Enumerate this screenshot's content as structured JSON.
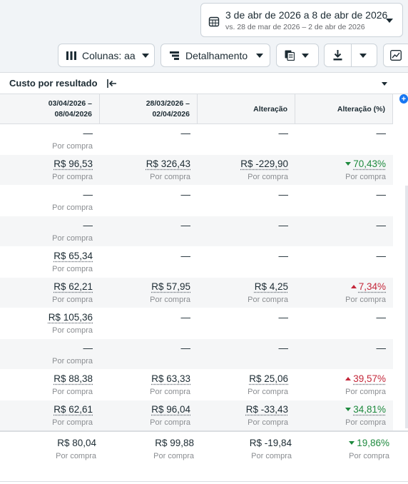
{
  "date_range": {
    "main": "3 de abr de 2026 a 8 de abr de 2026",
    "compare": "vs. 28 de mar de 2026 – 2 de abr de 2026"
  },
  "toolbar": {
    "columns_label": "Colunas: aa",
    "breakdown_label": "Detalhamento"
  },
  "filter": {
    "label": "Custo por resultado"
  },
  "columns": {
    "current_line1": "03/04/2026 –",
    "current_line2": "08/04/2026",
    "previous_line1": "28/03/2026 –",
    "previous_line2": "02/04/2026",
    "change": "Alteração",
    "change_pct": "Alteração (%)"
  },
  "rows": [
    {
      "current": "—",
      "current_unit": "Por compra",
      "previous": "—",
      "previous_unit": "",
      "change": "—",
      "change_unit": "",
      "pct": "—",
      "pct_unit": "",
      "pct_dir": ""
    },
    {
      "current": "R$ 96,53",
      "current_unit": "Por compra",
      "previous": "R$ 326,43",
      "previous_unit": "Por compra",
      "change": "R$ -229,90",
      "change_unit": "Por compra",
      "pct": "70,43%",
      "pct_unit": "Por compra",
      "pct_dir": "down"
    },
    {
      "current": "—",
      "current_unit": "Por compra",
      "previous": "—",
      "previous_unit": "",
      "change": "—",
      "change_unit": "",
      "pct": "—",
      "pct_unit": "",
      "pct_dir": ""
    },
    {
      "current": "—",
      "current_unit": "Por compra",
      "previous": "—",
      "previous_unit": "",
      "change": "—",
      "change_unit": "",
      "pct": "—",
      "pct_unit": "",
      "pct_dir": ""
    },
    {
      "current": "R$ 65,34",
      "current_unit": "Por compra",
      "previous": "—",
      "previous_unit": "",
      "change": "—",
      "change_unit": "",
      "pct": "—",
      "pct_unit": "",
      "pct_dir": ""
    },
    {
      "current": "R$ 62,21",
      "current_unit": "Por compra",
      "previous": "R$ 57,95",
      "previous_unit": "Por compra",
      "change": "R$ 4,25",
      "change_unit": "Por compra",
      "pct": "7,34%",
      "pct_unit": "Por compra",
      "pct_dir": "up"
    },
    {
      "current": "R$ 105,36",
      "current_unit": "Por compra",
      "previous": "—",
      "previous_unit": "",
      "change": "—",
      "change_unit": "",
      "pct": "—",
      "pct_unit": "",
      "pct_dir": ""
    },
    {
      "current": "—",
      "current_unit": "Por compra",
      "previous": "—",
      "previous_unit": "",
      "change": "—",
      "change_unit": "",
      "pct": "—",
      "pct_unit": "",
      "pct_dir": ""
    },
    {
      "current": "R$ 88,38",
      "current_unit": "Por compra",
      "previous": "R$ 63,33",
      "previous_unit": "Por compra",
      "change": "R$ 25,06",
      "change_unit": "Por compra",
      "pct": "39,57%",
      "pct_unit": "Por compra",
      "pct_dir": "up"
    },
    {
      "current": "R$ 62,61",
      "current_unit": "Por compra",
      "previous": "R$ 96,04",
      "previous_unit": "Por compra",
      "change": "R$ -33,43",
      "change_unit": "Por compra",
      "pct": "34,81%",
      "pct_unit": "Por compra",
      "pct_dir": "down"
    }
  ],
  "total": {
    "current": "R$ 80,04",
    "current_unit": "Por compra",
    "previous": "R$ 99,88",
    "previous_unit": "Por compra",
    "change": "R$ -19,84",
    "change_unit": "Por compra",
    "pct": "19,86%",
    "pct_unit": "Por compra",
    "pct_dir": "down"
  },
  "colors": {
    "decrease": "#1e8a3e",
    "increase": "#c4273a",
    "accent": "#1877f2"
  }
}
